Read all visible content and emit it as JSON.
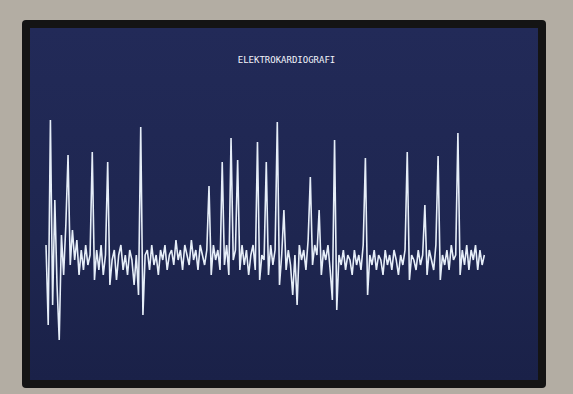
{
  "chart_data": {
    "type": "line",
    "title": "ELEKTROKARDIOGRAFI",
    "values": [
      20,
      -60,
      145,
      -40,
      65,
      -20,
      -75,
      30,
      -10,
      40,
      110,
      0,
      35,
      5,
      25,
      -10,
      15,
      -5,
      20,
      0,
      10,
      113,
      -15,
      15,
      -5,
      20,
      -10,
      10,
      103,
      -20,
      5,
      15,
      -15,
      10,
      20,
      -5,
      10,
      -10,
      15,
      5,
      -20,
      10,
      -30,
      138,
      -50,
      10,
      15,
      -5,
      20,
      0,
      10,
      -10,
      15,
      5,
      20,
      -5,
      10,
      15,
      0,
      25,
      5,
      15,
      -5,
      20,
      10,
      0,
      25,
      5,
      15,
      -5,
      20,
      10,
      0,
      15,
      79,
      -10,
      20,
      5,
      15,
      -5,
      103,
      0,
      20,
      -10,
      127,
      5,
      15,
      105,
      -5,
      20,
      0,
      15,
      -10,
      10,
      20,
      -5,
      123,
      -15,
      10,
      5,
      103,
      -10,
      20,
      0,
      15,
      143,
      -20,
      10,
      55,
      -5,
      15,
      0,
      -30,
      10,
      -40,
      20,
      5,
      15,
      -5,
      25,
      88,
      0,
      20,
      10,
      55,
      -10,
      15,
      5,
      20,
      -5,
      -35,
      125,
      -45,
      10,
      0,
      15,
      -5,
      10,
      5,
      -10,
      15,
      0,
      10,
      -5,
      20,
      107,
      -30,
      10,
      0,
      15,
      -5,
      10,
      5,
      -10,
      15,
      0,
      10,
      -5,
      15,
      5,
      -10,
      10,
      0,
      15,
      113,
      -15,
      10,
      5,
      -5,
      15,
      0,
      10,
      60,
      -10,
      15,
      5,
      -5,
      20,
      109,
      -15,
      10,
      0,
      15,
      -5,
      20,
      5,
      10,
      132,
      -10,
      15,
      0,
      20,
      -5,
      15,
      5,
      20,
      -5,
      15,
      0,
      10
    ],
    "color": "#e6eef8",
    "xlim": [
      -5,
      222
    ],
    "ylim": [
      -110,
      230
    ],
    "tick_labels": false,
    "grid": false
  }
}
